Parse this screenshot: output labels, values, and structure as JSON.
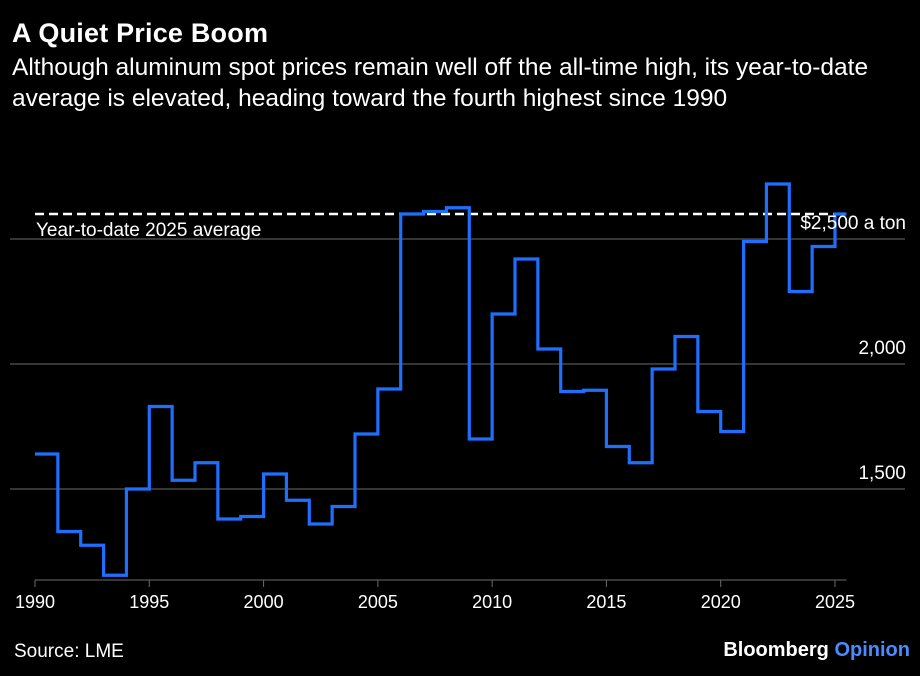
{
  "header": {
    "title": "A Quiet Price Boom",
    "subtitle": "Although aluminum spot prices remain well off the all-time high, its year-to-date average is elevated, heading toward the fourth highest since 1990"
  },
  "footer": {
    "source": "Source: LME",
    "brand_main": "Bloomberg",
    "brand_accent": "Opinion"
  },
  "colors": {
    "background": "#000000",
    "line": "#1f6fff",
    "gridline": "#6b6b6b",
    "text": "#ffffff",
    "brand_accent": "#4a8cff"
  },
  "chart_data": {
    "type": "line",
    "step": true,
    "x_domain": [
      1990,
      2025.5
    ],
    "ylim": [
      1150,
      2800
    ],
    "yticks": [
      {
        "value": 1500,
        "label": "1,500"
      },
      {
        "value": 2000,
        "label": "2,000"
      },
      {
        "value": 2500,
        "label": "$2,500 a ton"
      }
    ],
    "xticks": [
      1990,
      1995,
      2000,
      2005,
      2010,
      2015,
      2020,
      2025
    ],
    "series": [
      {
        "x": [
          1990,
          1991,
          1992,
          1993,
          1994,
          1995,
          1996,
          1997,
          1998,
          1999,
          2000,
          2001,
          2002,
          2003,
          2004,
          2005,
          2006,
          2007,
          2008,
          2009,
          2010,
          2011,
          2012,
          2013,
          2014,
          2015,
          2016,
          2017,
          2018,
          2019,
          2020,
          2021,
          2022,
          2023,
          2024,
          2025
        ],
        "values": [
          1640,
          1330,
          1275,
          1155,
          1500,
          1830,
          1535,
          1605,
          1380,
          1390,
          1560,
          1455,
          1360,
          1430,
          1720,
          1900,
          2600,
          2610,
          2625,
          1700,
          2200,
          2420,
          2060,
          1890,
          1895,
          1670,
          1605,
          1980,
          2110,
          1810,
          1730,
          2490,
          2720,
          2290,
          2470,
          2600
        ]
      }
    ],
    "reference_line": {
      "value": 2600,
      "label": "Year-to-date 2025 average"
    }
  }
}
